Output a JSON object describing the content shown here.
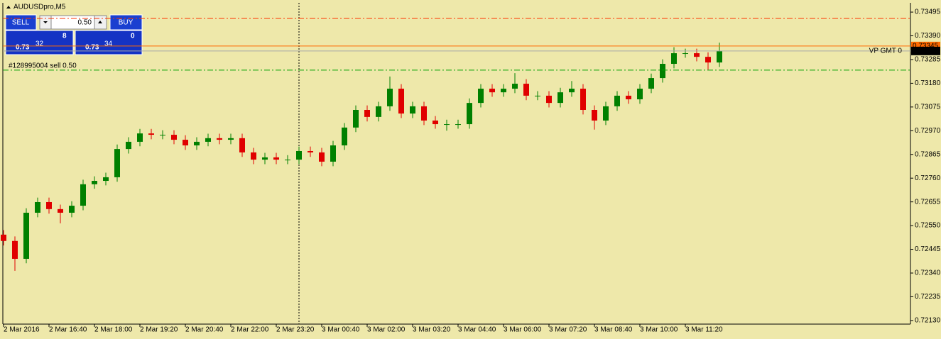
{
  "chart_data": {
    "type": "candlestick",
    "title": "AUDUSDpro,M5",
    "background": "#eee8aa",
    "up_color": "#008000",
    "down_color": "#e00000",
    "grid": false,
    "categories": [
      "2 Mar 2016",
      null,
      null,
      null,
      "2 Mar 16:40",
      null,
      null,
      null,
      "2 Mar 18:00",
      null,
      null,
      null,
      "2 Mar 19:20",
      null,
      null,
      null,
      "2 Mar 20:40",
      null,
      null,
      null,
      "2 Mar 22:00",
      null,
      null,
      null,
      "2 Mar 23:20",
      null,
      null,
      null,
      "3 Mar 00:40",
      null,
      null,
      null,
      "3 Mar 02:00",
      null,
      null,
      null,
      "3 Mar 03:20",
      null,
      null,
      null,
      "3 Mar 04:40",
      null,
      null,
      null,
      "3 Mar 06:00",
      null,
      null,
      null,
      "3 Mar 07:20",
      null,
      null,
      null,
      "3 Mar 08:40",
      null,
      null,
      null,
      "3 Mar 10:00",
      null,
      null,
      null,
      "3 Mar 11:20",
      null,
      null,
      null
    ],
    "open": [
      0.7251,
      0.72482,
      0.72403,
      0.72607,
      0.72654,
      0.72623,
      0.72607,
      0.72638,
      0.72733,
      0.72748,
      0.72764,
      0.72889,
      0.72921,
      0.72958,
      0.72952,
      0.72952,
      0.7293,
      0.72905,
      0.72921,
      0.72937,
      0.7293,
      0.72937,
      0.72874,
      0.72842,
      0.72852,
      0.72842,
      0.72842,
      0.7288,
      0.72874,
      0.72833,
      0.72905,
      0.72984,
      0.73062,
      0.73031,
      0.73078,
      0.73156,
      0.73046,
      0.73078,
      0.73015,
      0.72999,
      0.72999,
      0.72999,
      0.73093,
      0.73156,
      0.7314,
      0.73156,
      0.73178,
      0.73125,
      0.73125,
      0.73093,
      0.7314,
      0.73156,
      0.73062,
      0.73015,
      0.73078,
      0.73125,
      0.73109,
      0.73156,
      0.73203,
      0.73266,
      0.73313,
      0.73313,
      0.73297,
      0.73272
    ],
    "high": [
      0.7253,
      0.72502,
      0.72627,
      0.72674,
      0.72674,
      0.72643,
      0.72658,
      0.72753,
      0.72768,
      0.72784,
      0.72909,
      0.72941,
      0.72978,
      0.72978,
      0.72972,
      0.72972,
      0.7295,
      0.72941,
      0.72957,
      0.72957,
      0.72957,
      0.72957,
      0.72894,
      0.72872,
      0.72872,
      0.72862,
      0.729,
      0.729,
      0.72894,
      0.72925,
      0.73004,
      0.73082,
      0.73082,
      0.73098,
      0.7321,
      0.73176,
      0.73098,
      0.73098,
      0.73035,
      0.73019,
      0.73019,
      0.73113,
      0.73176,
      0.73176,
      0.73176,
      0.73225,
      0.73198,
      0.73145,
      0.73145,
      0.7316,
      0.7319,
      0.73176,
      0.73082,
      0.73098,
      0.73145,
      0.73145,
      0.73176,
      0.73223,
      0.73286,
      0.7334,
      0.73333,
      0.73333,
      0.73317,
      0.7336
    ],
    "low": [
      0.72462,
      0.7235,
      0.72383,
      0.72587,
      0.72603,
      0.7256,
      0.72587,
      0.72618,
      0.72713,
      0.72728,
      0.72744,
      0.72869,
      0.72901,
      0.72932,
      0.72932,
      0.7291,
      0.72885,
      0.72885,
      0.72901,
      0.7291,
      0.7291,
      0.72854,
      0.72822,
      0.72822,
      0.72822,
      0.72822,
      0.72822,
      0.72854,
      0.72813,
      0.72813,
      0.72885,
      0.72964,
      0.73011,
      0.73011,
      0.73058,
      0.73026,
      0.73026,
      0.72995,
      0.72979,
      0.7297,
      0.72979,
      0.72979,
      0.73073,
      0.7312,
      0.7312,
      0.73136,
      0.73105,
      0.73105,
      0.73073,
      0.73073,
      0.7312,
      0.73042,
      0.72975,
      0.72995,
      0.73058,
      0.73089,
      0.73089,
      0.73136,
      0.73183,
      0.73246,
      0.73293,
      0.73277,
      0.7324,
      0.73252
    ],
    "close": [
      0.72482,
      0.72403,
      0.72607,
      0.72654,
      0.72623,
      0.72607,
      0.72638,
      0.72733,
      0.72748,
      0.72764,
      0.72889,
      0.72921,
      0.72958,
      0.72952,
      0.72952,
      0.7293,
      0.72905,
      0.72921,
      0.72937,
      0.7293,
      0.72937,
      0.72874,
      0.72842,
      0.72852,
      0.72842,
      0.72842,
      0.7288,
      0.72874,
      0.72833,
      0.72905,
      0.72984,
      0.73062,
      0.73031,
      0.73078,
      0.73156,
      0.73046,
      0.73078,
      0.73015,
      0.72999,
      0.72999,
      0.72999,
      0.73093,
      0.73156,
      0.7314,
      0.73156,
      0.73178,
      0.73125,
      0.73125,
      0.73093,
      0.7314,
      0.73156,
      0.73062,
      0.73015,
      0.73078,
      0.73125,
      0.73109,
      0.73156,
      0.73203,
      0.73266,
      0.73313,
      0.73313,
      0.73297,
      0.73272,
      0.73323
    ],
    "ylim": [
      0.72114,
      0.73536
    ],
    "yticks": [
      {
        "value": 0.73495,
        "label": "0.73495"
      },
      {
        "value": 0.7339,
        "label": "0.73390"
      },
      {
        "value": 0.73285,
        "label": "0.73285"
      },
      {
        "value": 0.7318,
        "label": "0.73180"
      },
      {
        "value": 0.73075,
        "label": "0.73075"
      },
      {
        "value": 0.7297,
        "label": "0.72970"
      },
      {
        "value": 0.72865,
        "label": "0.72865"
      },
      {
        "value": 0.7276,
        "label": "0.72760"
      },
      {
        "value": 0.72655,
        "label": "0.72655"
      },
      {
        "value": 0.7255,
        "label": "0.72550"
      },
      {
        "value": 0.72445,
        "label": "0.72445"
      },
      {
        "value": 0.7234,
        "label": "0.72340"
      },
      {
        "value": 0.72235,
        "label": "0.72235"
      },
      {
        "value": 0.7213,
        "label": "0.72130"
      }
    ],
    "price_lines": [
      {
        "price": 0.73467,
        "color": "#ff3300",
        "style": "dashdot"
      },
      {
        "price": 0.73238,
        "color": "#00a000",
        "style": "dashdot",
        "text": "#128995004 sell 0.50"
      },
      {
        "price": 0.73345,
        "color": "#ff6a00",
        "style": "solid",
        "label": "0.73345"
      },
      {
        "price": 0.73323,
        "color": "#a8a8a8",
        "style": "solid",
        "label": "0.73323",
        "text": "VP GMT 0"
      }
    ],
    "panel": {
      "sell": "SELL",
      "buy": "BUY",
      "lot": "0.50",
      "sell_price": {
        "big": "0.73",
        "pips": "32",
        "frac": "8"
      },
      "buy_price": {
        "big": "0.73",
        "pips": "34",
        "frac": "0"
      }
    }
  }
}
